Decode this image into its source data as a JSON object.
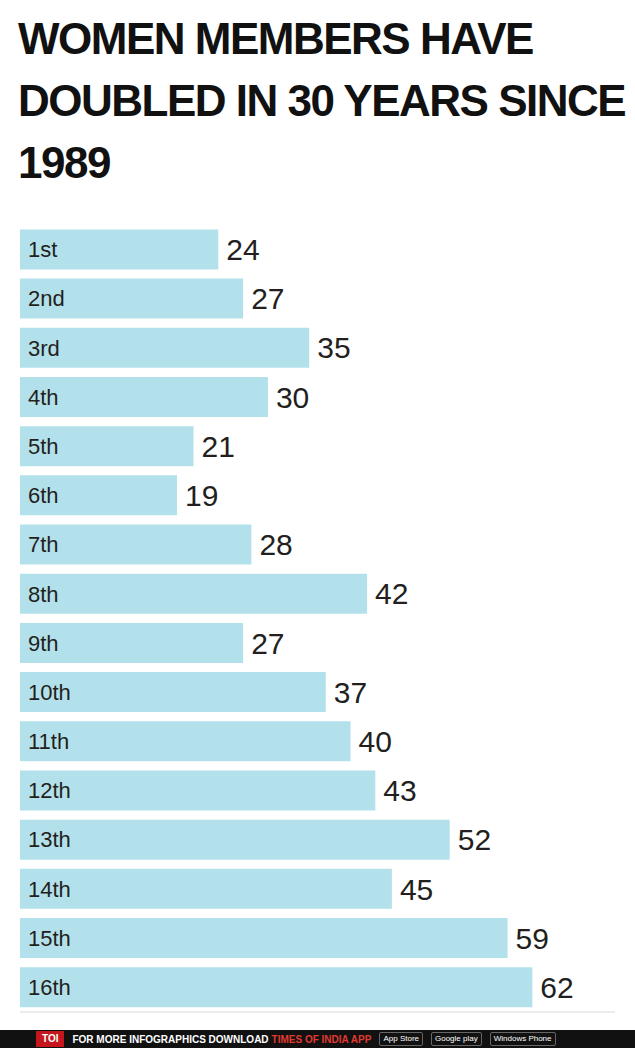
{
  "chart_data": {
    "type": "bar",
    "title": "WOMEN MEMBERS HAVE DOUBLED IN 30 YEARS SINCE 1989",
    "orientation": "horizontal",
    "categories": [
      "1st",
      "2nd",
      "3rd",
      "4th",
      "5th",
      "6th",
      "7th",
      "8th",
      "9th",
      "10th",
      "11th",
      "12th",
      "13th",
      "14th",
      "15th",
      "16th"
    ],
    "values": [
      24,
      27,
      35,
      30,
      21,
      19,
      28,
      42,
      27,
      37,
      40,
      43,
      52,
      45,
      59,
      62
    ],
    "color": "#b3e1eb",
    "xlim": [
      0,
      72
    ],
    "data_labels": true,
    "tick_labels": false,
    "grid": false
  },
  "footer": {
    "logo": "TOI",
    "text": "FOR MORE INFOGRAPHICS DOWNLOAD",
    "app": "TIMES OF INDIA APP",
    "badges": [
      "App Store",
      "Google play",
      "Windows Phone"
    ]
  }
}
